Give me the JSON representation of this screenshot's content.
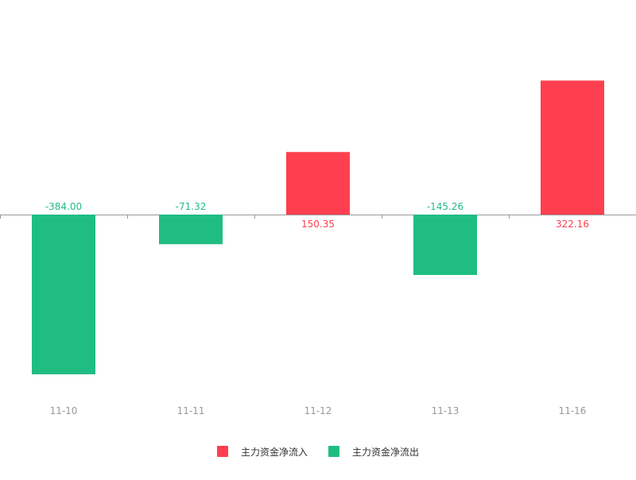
{
  "chart_data": {
    "type": "bar",
    "categories": [
      "11-10",
      "11-11",
      "11-12",
      "11-13",
      "11-16"
    ],
    "values": [
      -384.0,
      -71.32,
      150.35,
      -145.26,
      322.16
    ],
    "value_labels": [
      "-384.00",
      "-71.32",
      "150.35",
      "-145.26",
      "322.16"
    ],
    "ylim": [
      -420,
      330
    ],
    "grid": false,
    "legend_position": "bottom-center",
    "legend": [
      {
        "name": "主力资金净流入",
        "color": "#fe3f4f"
      },
      {
        "name": "主力资金净流出",
        "color": "#20bd83"
      }
    ],
    "colors": {
      "positive": "#fe3f4f",
      "negative": "#20bd83",
      "axis": "#999999",
      "tick_label": "#999999"
    }
  }
}
